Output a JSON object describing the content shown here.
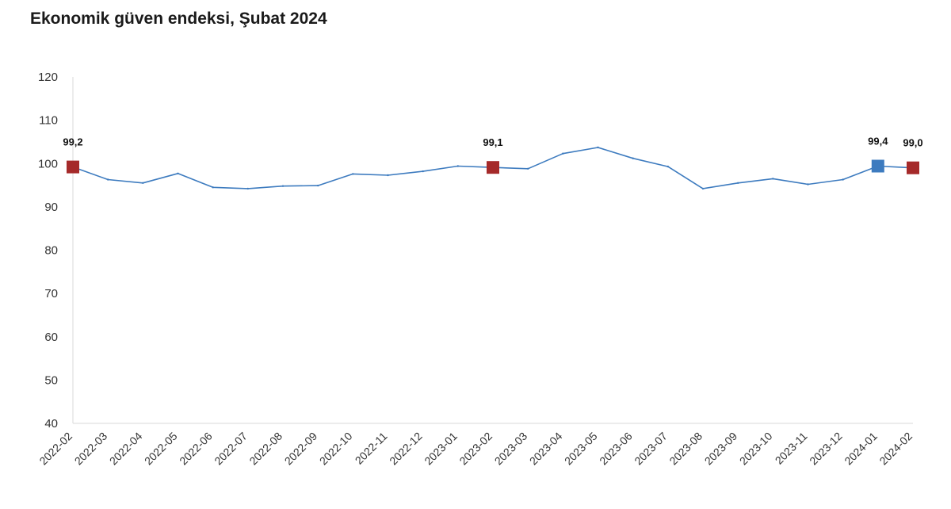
{
  "chart_data": {
    "type": "line",
    "title": "Ekonomik güven endeksi, Şubat 2024",
    "xlabel": "",
    "ylabel": "",
    "ylim": [
      40,
      120
    ],
    "yticks": [
      40,
      50,
      60,
      70,
      80,
      90,
      100,
      110,
      120
    ],
    "grid": false,
    "legend": "none",
    "categories": [
      "2022-02",
      "2022-03",
      "2022-04",
      "2022-05",
      "2022-06",
      "2022-07",
      "2022-08",
      "2022-09",
      "2022-10",
      "2022-11",
      "2022-12",
      "2023-01",
      "2023-02",
      "2023-03",
      "2023-04",
      "2023-05",
      "2023-06",
      "2023-07",
      "2023-08",
      "2023-09",
      "2023-10",
      "2023-11",
      "2023-12",
      "2024-01",
      "2024-02"
    ],
    "series": [
      {
        "color": "#3d7bbf",
        "values": [
          99.2,
          96.3,
          95.5,
          97.7,
          94.5,
          94.2,
          94.8,
          94.9,
          97.6,
          97.3,
          98.2,
          99.4,
          99.1,
          98.8,
          102.3,
          103.7,
          101.2,
          99.3,
          94.2,
          95.5,
          96.5,
          95.2,
          96.3,
          99.4,
          99.0
        ]
      }
    ],
    "markers": [
      {
        "index": 0,
        "label": "99,2",
        "color": "#a52a2a"
      },
      {
        "index": 12,
        "label": "99,1",
        "color": "#a52a2a"
      },
      {
        "index": 23,
        "label": "99,4",
        "color": "#3d7bbf"
      },
      {
        "index": 24,
        "label": "99,0",
        "color": "#a52a2a"
      }
    ]
  }
}
